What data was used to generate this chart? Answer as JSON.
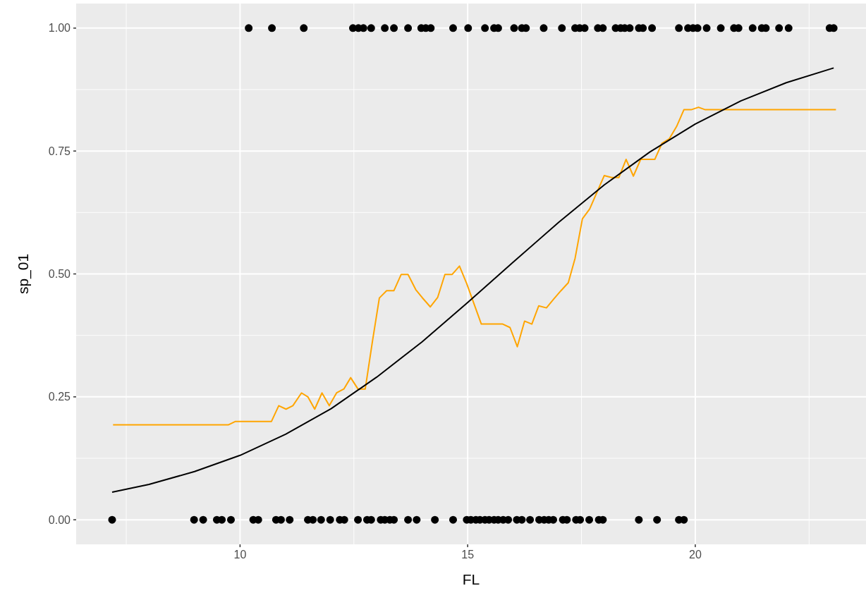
{
  "chart_data": {
    "type": "scatter",
    "xlabel": "FL",
    "ylabel": "sp_01",
    "xlim": [
      6.4,
      23.75
    ],
    "ylim": [
      -0.05,
      1.05
    ],
    "xticks": [
      10,
      15,
      20
    ],
    "yticks": [
      {
        "value": 0,
        "label": "0.00"
      },
      {
        "value": 0.25,
        "label": "0.25"
      },
      {
        "value": 0.5,
        "label": "0.50"
      },
      {
        "value": 0.75,
        "label": "0.75"
      },
      {
        "value": 1,
        "label": "1.00"
      }
    ],
    "grid": true,
    "series": [
      {
        "marker": "circle",
        "color": "#000000",
        "x": [
          10.19,
          10.7,
          11.4,
          12.48,
          12.6,
          12.71,
          12.88,
          13.18,
          13.38,
          13.69,
          13.98,
          14.08,
          14.19,
          14.68,
          15.01,
          15.38,
          15.58,
          15.67,
          16.02,
          16.19,
          16.28,
          16.67,
          17.07,
          17.36,
          17.46,
          17.57,
          17.86,
          17.97,
          18.25,
          18.36,
          18.45,
          18.56,
          18.76,
          18.85,
          19.05,
          19.64,
          19.84,
          19.95,
          20.05,
          20.25,
          20.56,
          20.85,
          20.95,
          21.26,
          21.46,
          21.55,
          21.84,
          22.05,
          22.95,
          23.04,
          7.19,
          8.99,
          9.19,
          9.49,
          9.6,
          9.8,
          10.29,
          10.4,
          10.79,
          10.9,
          11.09,
          11.49,
          11.6,
          11.78,
          11.98,
          12.19,
          12.29,
          12.59,
          12.79,
          12.88,
          13.09,
          13.18,
          13.29,
          13.38,
          13.69,
          13.88,
          14.28,
          14.68,
          14.98,
          15.07,
          15.18,
          15.27,
          15.38,
          15.47,
          15.58,
          15.67,
          15.78,
          15.89,
          16.08,
          16.19,
          16.37,
          16.57,
          16.68,
          16.78,
          16.88,
          17.09,
          17.18,
          17.38,
          17.47,
          17.67,
          17.88,
          17.97,
          18.76,
          19.16,
          19.64,
          19.75
        ],
        "values": [
          1,
          1,
          1,
          1,
          1,
          1,
          1,
          1,
          1,
          1,
          1,
          1,
          1,
          1,
          1,
          1,
          1,
          1,
          1,
          1,
          1,
          1,
          1,
          1,
          1,
          1,
          1,
          1,
          1,
          1,
          1,
          1,
          1,
          1,
          1,
          1,
          1,
          1,
          1,
          1,
          1,
          1,
          1,
          1,
          1,
          1,
          1,
          1,
          1,
          1,
          0,
          0,
          0,
          0,
          0,
          0,
          0,
          0,
          0,
          0,
          0,
          0,
          0,
          0,
          0,
          0,
          0,
          0,
          0,
          0,
          0,
          0,
          0,
          0,
          0,
          0,
          0,
          0,
          0,
          0,
          0,
          0,
          0,
          0,
          0,
          0,
          0,
          0,
          0,
          0,
          0,
          0,
          0,
          0,
          0,
          0,
          0,
          0,
          0,
          0,
          0,
          0,
          0,
          0,
          0,
          0
        ]
      },
      {
        "type": "line",
        "color": "#ffa500",
        "x": [
          7.21,
          9.74,
          9.9,
          10.69,
          10.85,
          11.01,
          11.16,
          11.35,
          11.49,
          11.64,
          11.8,
          11.96,
          12.12,
          12.28,
          12.43,
          12.59,
          12.75,
          12.91,
          13.06,
          13.22,
          13.38,
          13.54,
          13.69,
          13.86,
          14.0,
          14.18,
          14.34,
          14.5,
          14.66,
          14.82,
          14.98,
          15.3,
          15.77,
          15.93,
          16.09,
          16.25,
          16.41,
          16.56,
          16.73,
          16.89,
          17.05,
          17.21,
          17.36,
          17.52,
          17.68,
          18.0,
          18.16,
          18.32,
          18.48,
          18.64,
          18.8,
          19.11,
          19.27,
          19.43,
          19.59,
          19.75,
          19.91,
          20.07,
          20.22,
          23.09
        ],
        "values": [
          0.193,
          0.193,
          0.2,
          0.2,
          0.232,
          0.225,
          0.232,
          0.258,
          0.25,
          0.225,
          0.258,
          0.232,
          0.258,
          0.266,
          0.289,
          0.266,
          0.266,
          0.364,
          0.451,
          0.466,
          0.466,
          0.499,
          0.499,
          0.468,
          0.452,
          0.433,
          0.452,
          0.499,
          0.499,
          0.516,
          0.48,
          0.398,
          0.398,
          0.391,
          0.352,
          0.404,
          0.398,
          0.435,
          0.431,
          0.449,
          0.466,
          0.482,
          0.532,
          0.612,
          0.632,
          0.7,
          0.696,
          0.696,
          0.733,
          0.699,
          0.733,
          0.733,
          0.766,
          0.775,
          0.8,
          0.834,
          0.834,
          0.839,
          0.834,
          0.834
        ]
      },
      {
        "type": "line",
        "color": "#000000",
        "x": [
          7.19,
          8,
          9,
          10,
          11,
          12,
          13,
          14,
          15,
          16,
          17,
          18,
          19,
          20,
          21,
          22,
          23.04
        ],
        "values": [
          0.056,
          0.072,
          0.098,
          0.131,
          0.174,
          0.226,
          0.29,
          0.362,
          0.442,
          0.524,
          0.605,
          0.681,
          0.748,
          0.805,
          0.852,
          0.889,
          0.919
        ]
      }
    ]
  }
}
